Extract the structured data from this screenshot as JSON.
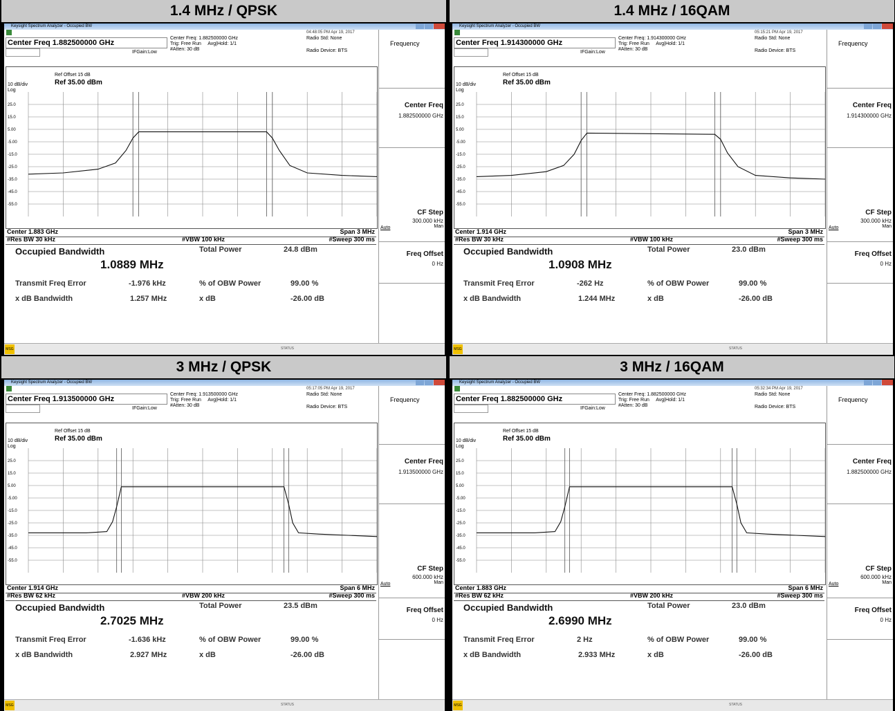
{
  "panels": [
    {
      "header": "1.4 MHz / QPSK",
      "titlebar": "Keysight Spectrum Analyzer - Occupied BW",
      "timestamp": "04:48:05 PM Apr 19, 2017",
      "center_freq_box": "Center Freq 1.882500000 GHz",
      "center_freq_info": "Center Freq: 1.882500000 GHz",
      "trig": "Trig: Free Run",
      "avg_hold": "Avg|Hold: 1/1",
      "atten": "#Atten: 30 dB",
      "gain": "IFGain:Low",
      "radio_std": "Radio Std: None",
      "radio_device": "Radio Device: BTS",
      "ref_offset": "Ref Offset 15 dB",
      "scale": "10 dB/div",
      "ref_level": "Ref 35.00 dBm",
      "log": "Log",
      "y_ticks": [
        "25.0",
        "15.0",
        "5.00",
        "-5.00",
        "-15.0",
        "-25.0",
        "-35.0",
        "-45.0",
        "-55.0"
      ],
      "center_label": "Center  1.883 GHz",
      "span_label": "Span 3 MHz",
      "res_bw": "#Res BW  30 kHz",
      "vbw": "#VBW  100 kHz",
      "sweep": "#Sweep  300 ms",
      "obw_title": "Occupied Bandwidth",
      "obw_value": "1.0889 MHz",
      "total_power_label": "Total Power",
      "total_power_value": "24.8 dBm",
      "tfe_label": "Transmit Freq Error",
      "tfe_value": "-1.976 kHz",
      "obw_pct_label": "% of OBW Power",
      "obw_pct_value": "99.00 %",
      "xdb_bw_label": "x dB Bandwidth",
      "xdb_bw_value": "1.257 MHz",
      "xdb_label": "x dB",
      "xdb_value": "-26.00 dB",
      "softkey_menu": "Frequency",
      "softkey_center": "Center Freq",
      "softkey_center_val": "1.882500000 GHz",
      "softkey_cfstep": "CF Step",
      "softkey_cfstep_val": "300.000 kHz",
      "softkey_auto": "Auto",
      "softkey_man": "Man",
      "softkey_offset": "Freq Offset",
      "softkey_offset_val": "0 Hz",
      "msg": "MSG",
      "status": "STATUS"
    },
    {
      "header": "1.4 MHz / 16QAM",
      "titlebar": "Keysight Spectrum Analyzer - Occupied BW",
      "timestamp": "05:15:21 PM Apr 19, 2017",
      "center_freq_box": "Center Freq 1.914300000 GHz",
      "center_freq_info": "Center Freq: 1.914300000 GHz",
      "trig": "Trig: Free Run",
      "avg_hold": "Avg|Hold: 1/1",
      "atten": "#Atten: 30 dB",
      "gain": "IFGain:Low",
      "radio_std": "Radio Std: None",
      "radio_device": "Radio Device: BTS",
      "ref_offset": "Ref Offset 15 dB",
      "scale": "10 dB/div",
      "ref_level": "Ref 35.00 dBm",
      "log": "Log",
      "y_ticks": [
        "25.0",
        "15.0",
        "5.00",
        "-5.00",
        "-15.0",
        "-25.0",
        "-35.0",
        "-45.0",
        "-55.0"
      ],
      "center_label": "Center  1.914 GHz",
      "span_label": "Span 3 MHz",
      "res_bw": "#Res BW  30 kHz",
      "vbw": "#VBW  100 kHz",
      "sweep": "#Sweep  300 ms",
      "obw_title": "Occupied Bandwidth",
      "obw_value": "1.0908 MHz",
      "total_power_label": "Total Power",
      "total_power_value": "23.0 dBm",
      "tfe_label": "Transmit Freq Error",
      "tfe_value": "-262 Hz",
      "obw_pct_label": "% of OBW Power",
      "obw_pct_value": "99.00 %",
      "xdb_bw_label": "x dB Bandwidth",
      "xdb_bw_value": "1.244 MHz",
      "xdb_label": "x dB",
      "xdb_value": "-26.00 dB",
      "softkey_menu": "Frequency",
      "softkey_center": "Center Freq",
      "softkey_center_val": "1.914300000 GHz",
      "softkey_cfstep": "CF Step",
      "softkey_cfstep_val": "300.000 kHz",
      "softkey_auto": "Auto",
      "softkey_man": "Man",
      "softkey_offset": "Freq Offset",
      "softkey_offset_val": "0 Hz",
      "msg": "MSG",
      "status": "STATUS"
    },
    {
      "header": "3 MHz / QPSK",
      "titlebar": "Keysight Spectrum Analyzer - Occupied BW",
      "timestamp": "05:17:05 PM Apr 19, 2017",
      "center_freq_box": "Center Freq 1.913500000 GHz",
      "center_freq_info": "Center Freq: 1.913500000 GHz",
      "trig": "Trig: Free Run",
      "avg_hold": "Avg|Hold: 1/1",
      "atten": "#Atten: 30 dB",
      "gain": "IFGain:Low",
      "radio_std": "Radio Std: None",
      "radio_device": "Radio Device: BTS",
      "ref_offset": "Ref Offset 15 dB",
      "scale": "10 dB/div",
      "ref_level": "Ref 35.00 dBm",
      "log": "Log",
      "y_ticks": [
        "25.0",
        "15.0",
        "5.00",
        "-5.00",
        "-15.0",
        "-25.0",
        "-35.0",
        "-45.0",
        "-55.0"
      ],
      "center_label": "Center  1.914 GHz",
      "span_label": "Span 6 MHz",
      "res_bw": "#Res BW  62 kHz",
      "vbw": "#VBW  200 kHz",
      "sweep": "#Sweep  300 ms",
      "obw_title": "Occupied Bandwidth",
      "obw_value": "2.7025 MHz",
      "total_power_label": "Total Power",
      "total_power_value": "23.5 dBm",
      "tfe_label": "Transmit Freq Error",
      "tfe_value": "-1.636 kHz",
      "obw_pct_label": "% of OBW Power",
      "obw_pct_value": "99.00 %",
      "xdb_bw_label": "x dB Bandwidth",
      "xdb_bw_value": "2.927 MHz",
      "xdb_label": "x dB",
      "xdb_value": "-26.00 dB",
      "softkey_menu": "Frequency",
      "softkey_center": "Center Freq",
      "softkey_center_val": "1.913500000 GHz",
      "softkey_cfstep": "CF Step",
      "softkey_cfstep_val": "600.000 kHz",
      "softkey_auto": "Auto",
      "softkey_man": "Man",
      "softkey_offset": "Freq Offset",
      "softkey_offset_val": "0 Hz",
      "msg": "MSG",
      "status": "STATUS"
    },
    {
      "header": "3 MHz / 16QAM",
      "titlebar": "Keysight Spectrum Analyzer - Occupied BW",
      "timestamp": "05:32:34 PM Apr 19, 2017",
      "center_freq_box": "Center Freq 1.882500000 GHz",
      "center_freq_info": "Center Freq: 1.882500000 GHz",
      "trig": "Trig: Free Run",
      "avg_hold": "Avg|Hold: 1/1",
      "atten": "#Atten: 30 dB",
      "gain": "IFGain:Low",
      "radio_std": "Radio Std: None",
      "radio_device": "Radio Device: BTS",
      "ref_offset": "Ref Offset 15 dB",
      "scale": "10 dB/div",
      "ref_level": "Ref 35.00 dBm",
      "log": "Log",
      "y_ticks": [
        "25.0",
        "15.0",
        "5.00",
        "-5.00",
        "-15.0",
        "-25.0",
        "-35.0",
        "-45.0",
        "-55.0"
      ],
      "center_label": "Center  1.883 GHz",
      "span_label": "Span 6 MHz",
      "res_bw": "#Res BW  62 kHz",
      "vbw": "#VBW  200 kHz",
      "sweep": "#Sweep  300 ms",
      "obw_title": "Occupied Bandwidth",
      "obw_value": "2.6990 MHz",
      "total_power_label": "Total Power",
      "total_power_value": "23.0 dBm",
      "tfe_label": "Transmit Freq Error",
      "tfe_value": "2 Hz",
      "obw_pct_label": "% of OBW Power",
      "obw_pct_value": "99.00 %",
      "xdb_bw_label": "x dB Bandwidth",
      "xdb_bw_value": "2.933 MHz",
      "xdb_label": "x dB",
      "xdb_value": "-26.00 dB",
      "softkey_menu": "Frequency",
      "softkey_center": "Center Freq",
      "softkey_center_val": "1.882500000 GHz",
      "softkey_cfstep": "CF Step",
      "softkey_cfstep_val": "600.000 kHz",
      "softkey_auto": "Auto",
      "softkey_man": "Man",
      "softkey_offset": "Freq Offset",
      "softkey_offset_val": "0 Hz",
      "msg": "MSG",
      "status": "STATUS"
    }
  ],
  "chart_data": [
    {
      "type": "line",
      "ylim": [
        -65,
        35
      ],
      "x": [
        -1.5,
        -1.2,
        -0.9,
        -0.75,
        -0.66,
        -0.6,
        -0.55,
        0.55,
        0.6,
        0.66,
        0.75,
        0.9,
        1.2,
        1.5
      ],
      "y": [
        -31,
        -30,
        -27,
        -22,
        -12,
        -2,
        3,
        3,
        -2,
        -12,
        -24,
        -30,
        -32,
        -33
      ]
    },
    {
      "type": "line",
      "ylim": [
        -65,
        35
      ],
      "x": [
        -1.5,
        -1.2,
        -0.9,
        -0.75,
        -0.66,
        -0.6,
        -0.55,
        0.55,
        0.6,
        0.66,
        0.75,
        0.9,
        1.2,
        1.5
      ],
      "y": [
        -33,
        -32,
        -29,
        -24,
        -15,
        -4,
        2,
        1,
        -3,
        -14,
        -25,
        -32,
        -34,
        -35
      ]
    },
    {
      "type": "line",
      "ylim": [
        -65,
        35
      ],
      "x": [
        -3,
        -2.5,
        -2,
        -1.65,
        -1.55,
        -1.48,
        -1.4,
        1.4,
        1.48,
        1.55,
        1.65,
        2,
        2.5,
        3
      ],
      "y": [
        -33,
        -33,
        -33,
        -32,
        -24,
        -12,
        4,
        4,
        -10,
        -25,
        -33,
        -34,
        -35,
        -36
      ]
    },
    {
      "type": "line",
      "ylim": [
        -65,
        35
      ],
      "x": [
        -3,
        -2.5,
        -2,
        -1.65,
        -1.55,
        -1.48,
        -1.4,
        1.4,
        1.48,
        1.55,
        1.65,
        2,
        2.5,
        3
      ],
      "y": [
        -33,
        -33,
        -33,
        -32,
        -24,
        -12,
        4,
        4,
        -10,
        -25,
        -33,
        -34,
        -35,
        -36
      ]
    }
  ]
}
